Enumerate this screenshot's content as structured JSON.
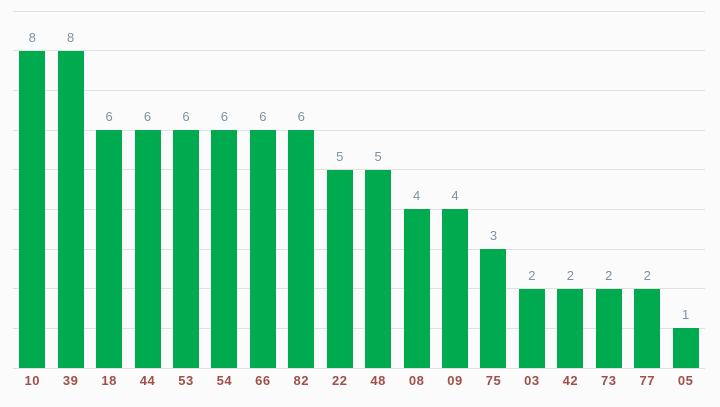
{
  "chart": {
    "background_color": "#fbfbfb",
    "bar_color": "#00ab50",
    "grid_color": "#e0e0e0",
    "value_label_color": "#7d93a5",
    "axis_label_color": "#a0504a"
  },
  "chart_data": {
    "type": "bar",
    "title": "",
    "xlabel": "",
    "ylabel": "",
    "categories": [
      "10",
      "39",
      "18",
      "44",
      "53",
      "54",
      "66",
      "82",
      "22",
      "48",
      "08",
      "09",
      "75",
      "03",
      "42",
      "73",
      "77",
      "05"
    ],
    "values": [
      8,
      8,
      6,
      6,
      6,
      6,
      6,
      6,
      5,
      5,
      4,
      4,
      3,
      2,
      2,
      2,
      2,
      1
    ],
    "ylim": [
      0,
      9
    ],
    "grid": true,
    "gridline_step": 1,
    "legend": "none",
    "y_axis_labels_visible": false,
    "value_labels_visible": true
  }
}
